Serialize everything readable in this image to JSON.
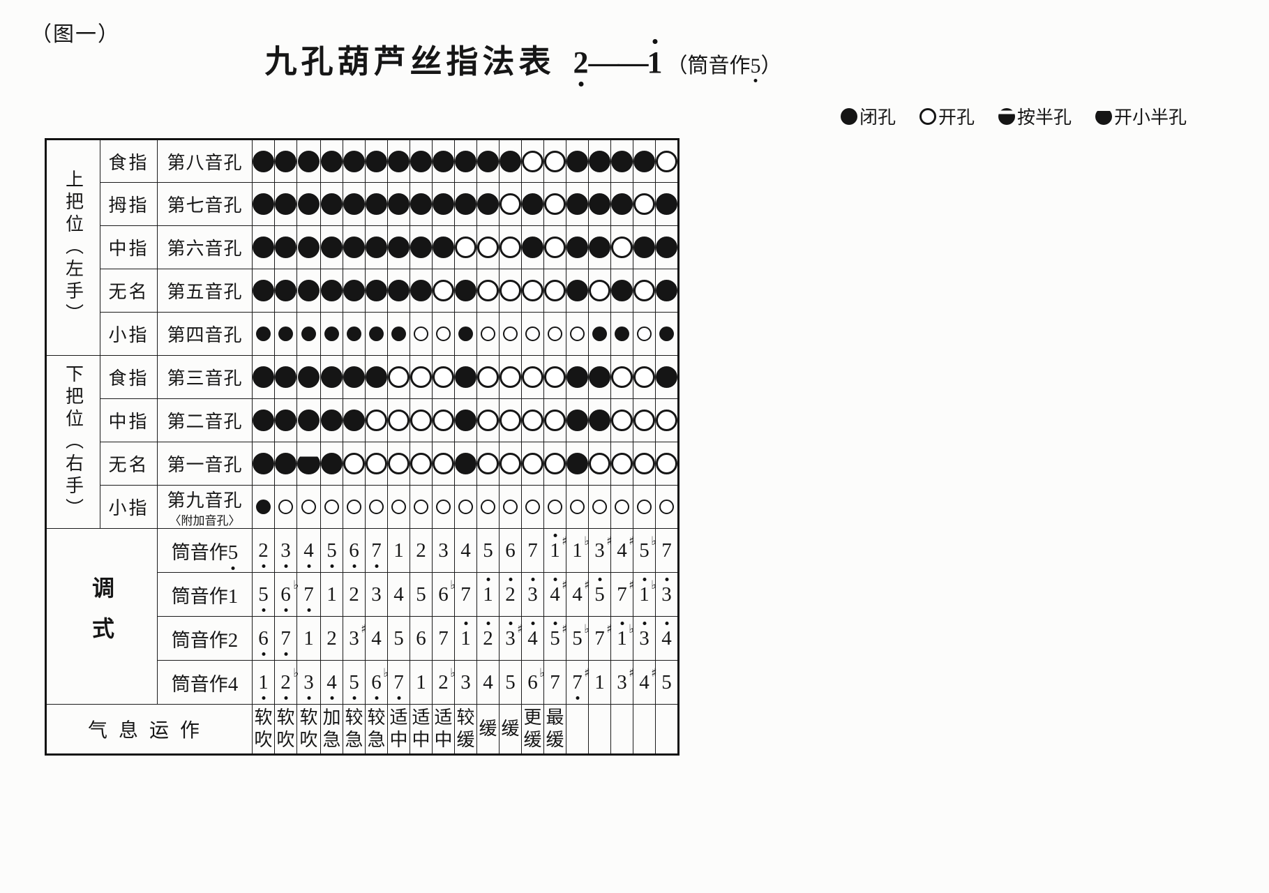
{
  "figure_label": "（图一）",
  "title": {
    "main": "九孔葫芦丝指法表",
    "range_start": "2,",
    "range_dash": "——",
    "range_end": "1'",
    "paren_open": "（",
    "paren_label": "筒音作",
    "paren_note": "5,",
    "paren_close": "）"
  },
  "legend": [
    {
      "icon": "closed-hole",
      "label": "闭孔"
    },
    {
      "icon": "open-hole",
      "label": "开孔"
    },
    {
      "icon": "half-press-hole",
      "label": "按半孔"
    },
    {
      "icon": "small-half-open-hole",
      "label": "开小半孔"
    }
  ],
  "symbol_key": {
    "C": "closed",
    "O": "open",
    "D": "small-half-open"
  },
  "colors": {
    "ink": "#161616",
    "paper": "#fcfcfb"
  },
  "table": {
    "groups": [
      {
        "label": "上把位（左手）",
        "rows": 5
      },
      {
        "label": "下把位（右手）",
        "rows": 4
      }
    ],
    "hole_rows": [
      {
        "finger": "食指",
        "hole": "第八音孔",
        "sub": "",
        "small": false,
        "pattern": [
          "C",
          "C",
          "C",
          "C",
          "C",
          "C",
          "C",
          "C",
          "C",
          "C",
          "C",
          "C",
          "O",
          "O",
          "C",
          "C",
          "C",
          "C",
          "O"
        ]
      },
      {
        "finger": "拇指",
        "hole": "第七音孔",
        "sub": "",
        "small": false,
        "pattern": [
          "C",
          "C",
          "C",
          "C",
          "C",
          "C",
          "C",
          "C",
          "C",
          "C",
          "C",
          "O",
          "C",
          "O",
          "C",
          "C",
          "C",
          "O",
          "C"
        ]
      },
      {
        "finger": "中指",
        "hole": "第六音孔",
        "sub": "",
        "small": false,
        "pattern": [
          "C",
          "C",
          "C",
          "C",
          "C",
          "C",
          "C",
          "C",
          "C",
          "O",
          "O",
          "O",
          "C",
          "O",
          "C",
          "C",
          "O",
          "C",
          "C"
        ]
      },
      {
        "finger": "无名",
        "hole": "第五音孔",
        "sub": "",
        "small": false,
        "pattern": [
          "C",
          "C",
          "C",
          "C",
          "C",
          "C",
          "C",
          "C",
          "O",
          "C",
          "O",
          "O",
          "O",
          "O",
          "C",
          "O",
          "C",
          "O",
          "C"
        ]
      },
      {
        "finger": "小指",
        "hole": "第四音孔",
        "sub": "",
        "small": true,
        "pattern": [
          "C",
          "C",
          "C",
          "C",
          "C",
          "C",
          "C",
          "O",
          "O",
          "C",
          "O",
          "O",
          "O",
          "O",
          "O",
          "C",
          "C",
          "O",
          "C"
        ]
      },
      {
        "finger": "食指",
        "hole": "第三音孔",
        "sub": "",
        "small": false,
        "pattern": [
          "C",
          "C",
          "C",
          "C",
          "C",
          "C",
          "O",
          "O",
          "O",
          "C",
          "O",
          "O",
          "O",
          "O",
          "C",
          "C",
          "O",
          "O",
          "C"
        ]
      },
      {
        "finger": "中指",
        "hole": "第二音孔",
        "sub": "",
        "small": false,
        "pattern": [
          "C",
          "C",
          "C",
          "C",
          "C",
          "O",
          "O",
          "O",
          "O",
          "C",
          "O",
          "O",
          "O",
          "O",
          "C",
          "C",
          "O",
          "O",
          "O"
        ]
      },
      {
        "finger": "无名",
        "hole": "第一音孔",
        "sub": "",
        "small": false,
        "pattern": [
          "C",
          "C",
          "D",
          "C",
          "O",
          "O",
          "O",
          "O",
          "O",
          "C",
          "O",
          "O",
          "O",
          "O",
          "C",
          "O",
          "O",
          "O",
          "O"
        ]
      },
      {
        "finger": "小指",
        "hole": "第九音孔",
        "sub": "〈附加音孔〉",
        "small": true,
        "pattern": [
          "C",
          "O",
          "O",
          "O",
          "O",
          "O",
          "O",
          "O",
          "O",
          "O",
          "O",
          "O",
          "O",
          "O",
          "O",
          "O",
          "O",
          "O",
          "O"
        ]
      }
    ],
    "mode_section_label": "调式",
    "mode_rows": [
      {
        "label_prefix": "筒音作",
        "label_note": "5,",
        "notes": [
          "2,",
          "3,",
          "4,",
          "5,",
          "6,",
          "7,",
          "1",
          "2",
          "3",
          "4",
          "5",
          "6",
          "7",
          "1'",
          "#1",
          "b3",
          "#4",
          "#5",
          "b7"
        ]
      },
      {
        "label_prefix": "筒音作",
        "label_note": "1",
        "notes": [
          "5,",
          "6,",
          "b7,",
          "1",
          "2",
          "3",
          "4",
          "5",
          "6",
          "b7",
          "1'",
          "2'",
          "3'",
          "4'",
          "#4",
          "#5'",
          "7",
          "#1'",
          "b3'"
        ]
      },
      {
        "label_prefix": "筒音作",
        "label_note": "2",
        "notes": [
          "6,",
          "7,",
          "1",
          "2",
          "3",
          "#4",
          "5",
          "6",
          "7",
          "1'",
          "2'",
          "3'",
          "#4'",
          "5'",
          "#5",
          "b7",
          "#1'",
          "b3'",
          "4'"
        ]
      },
      {
        "label_prefix": "筒音作",
        "label_note": "4",
        "notes": [
          "1,",
          "2,",
          "b3,",
          "4,",
          "5,",
          "6,",
          "b7,",
          "1",
          "2",
          "b3",
          "4",
          "5",
          "6",
          "b7",
          "7,",
          "#1",
          "3",
          "#4",
          "#5"
        ]
      }
    ],
    "breath": {
      "label": "气息运作",
      "values": [
        "软吹",
        "软吹",
        "软吹",
        "加急",
        "较急",
        "较急",
        "适中",
        "适中",
        "适中",
        "较缓",
        "缓",
        "缓",
        "更缓",
        "最缓",
        "",
        "",
        "",
        "",
        ""
      ]
    }
  }
}
